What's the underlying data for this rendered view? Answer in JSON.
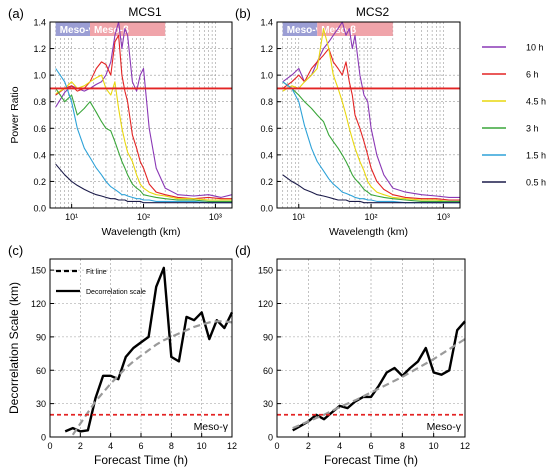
{
  "chart_data": [
    {
      "id": "a",
      "type": "line",
      "panel_label": "(a)",
      "title": "MCS1",
      "xlabel": "Wavelength (km)",
      "ylabel": "Power Ratio",
      "xscale": "log",
      "xlim": [
        5,
        1700
      ],
      "ylim": [
        0,
        1.4
      ],
      "xticks": [
        10,
        100,
        1000
      ],
      "xtick_labels": [
        "10¹",
        "10²",
        "10³"
      ],
      "yticks": [
        0,
        0.2,
        0.4,
        0.6,
        0.8,
        1.0,
        1.2,
        1.4
      ],
      "ytick_labels": [
        "0.0",
        "0.2",
        "0.4",
        "0.6",
        "0.8",
        "1.0",
        "1.2",
        "1.4"
      ],
      "grid": "dashed",
      "bands": [
        {
          "label": "Meso-γ",
          "from": 6,
          "to": 18,
          "color": "#9b9ed4"
        },
        {
          "label": "Meso-β",
          "from": 18,
          "to": 200,
          "color": "#f0a4aa"
        }
      ],
      "hline": {
        "y": 0.9,
        "color": "#e32424"
      },
      "series": [
        {
          "name": "10 h",
          "color": "#8a38b5",
          "x": [
            6,
            8,
            10,
            12,
            15,
            18,
            22,
            26,
            30,
            35,
            40,
            45,
            50,
            55,
            60,
            70,
            80,
            90,
            100,
            120,
            150,
            200,
            300,
            500,
            800,
            1200,
            1700
          ],
          "y": [
            0.76,
            0.87,
            0.92,
            0.9,
            0.88,
            0.9,
            0.93,
            0.95,
            1.0,
            1.1,
            1.3,
            1.4,
            1.2,
            1.35,
            1.3,
            0.95,
            0.88,
            1.0,
            1.05,
            0.6,
            0.3,
            0.15,
            0.1,
            0.09,
            0.1,
            0.08,
            0.1
          ]
        },
        {
          "name": "6 h",
          "color": "#e32424",
          "x": [
            6,
            8,
            10,
            12,
            15,
            18,
            22,
            26,
            30,
            35,
            40,
            45,
            50,
            55,
            60,
            70,
            80,
            90,
            100,
            120,
            150,
            200,
            300,
            500,
            800,
            1200,
            1700
          ],
          "y": [
            0.85,
            0.9,
            0.92,
            0.88,
            0.9,
            0.95,
            1.05,
            1.1,
            1.08,
            1.0,
            1.25,
            1.3,
            1.0,
            0.88,
            0.8,
            0.55,
            0.45,
            0.35,
            0.3,
            0.18,
            0.12,
            0.1,
            0.08,
            0.07,
            0.08,
            0.07,
            0.07
          ]
        },
        {
          "name": "4.5 h",
          "color": "#e8d70f",
          "x": [
            6,
            8,
            10,
            12,
            15,
            18,
            22,
            26,
            30,
            35,
            40,
            45,
            50,
            55,
            60,
            70,
            80,
            90,
            100,
            120,
            150,
            200,
            300,
            500,
            800,
            1200,
            1700
          ],
          "y": [
            0.86,
            0.9,
            0.95,
            0.9,
            0.92,
            0.95,
            0.98,
            1.0,
            0.9,
            0.85,
            0.95,
            0.75,
            0.6,
            0.5,
            0.42,
            0.35,
            0.25,
            0.18,
            0.15,
            0.12,
            0.1,
            0.09,
            0.07,
            0.07,
            0.06,
            0.06,
            0.06
          ]
        },
        {
          "name": "3 h",
          "color": "#3aa63a",
          "x": [
            6,
            8,
            10,
            12,
            15,
            18,
            22,
            26,
            30,
            35,
            40,
            45,
            50,
            55,
            60,
            70,
            80,
            90,
            100,
            120,
            150,
            200,
            300,
            500,
            800,
            1200,
            1700
          ],
          "y": [
            0.9,
            0.8,
            0.85,
            0.7,
            0.75,
            0.8,
            0.72,
            0.65,
            0.6,
            0.58,
            0.5,
            0.42,
            0.35,
            0.3,
            0.25,
            0.18,
            0.15,
            0.13,
            0.1,
            0.09,
            0.08,
            0.07,
            0.06,
            0.06,
            0.05,
            0.05,
            0.05
          ]
        },
        {
          "name": "1.5 h",
          "color": "#2ea2d8",
          "x": [
            6,
            8,
            10,
            12,
            15,
            18,
            22,
            26,
            30,
            35,
            40,
            45,
            50,
            55,
            60,
            70,
            80,
            90,
            100,
            120,
            150,
            200,
            300,
            500,
            800,
            1200,
            1700
          ],
          "y": [
            1.05,
            0.95,
            0.8,
            0.6,
            0.45,
            0.38,
            0.3,
            0.25,
            0.2,
            0.16,
            0.14,
            0.12,
            0.1,
            0.1,
            0.09,
            0.08,
            0.07,
            0.07,
            0.06,
            0.06,
            0.05,
            0.05,
            0.05,
            0.05,
            0.04,
            0.04,
            0.04
          ]
        },
        {
          "name": "0.5 h",
          "color": "#1c1c4a",
          "x": [
            6,
            8,
            10,
            12,
            15,
            18,
            22,
            26,
            30,
            35,
            40,
            45,
            50,
            55,
            60,
            70,
            80,
            90,
            100,
            120,
            150,
            200,
            300,
            500,
            800,
            1200,
            1700
          ],
          "y": [
            0.33,
            0.25,
            0.2,
            0.17,
            0.14,
            0.12,
            0.1,
            0.09,
            0.08,
            0.07,
            0.07,
            0.06,
            0.06,
            0.06,
            0.05,
            0.05,
            0.05,
            0.05,
            0.04,
            0.04,
            0.04,
            0.04,
            0.04,
            0.04,
            0.04,
            0.04,
            0.04
          ]
        }
      ]
    },
    {
      "id": "b",
      "type": "line",
      "panel_label": "(b)",
      "title": "MCS2",
      "xlabel": "Wavelength (km)",
      "ylabel": "",
      "xscale": "log",
      "xlim": [
        5,
        1700
      ],
      "ylim": [
        0,
        1.4
      ],
      "xticks": [
        10,
        100,
        1000
      ],
      "xtick_labels": [
        "10¹",
        "10²",
        "10³"
      ],
      "yticks": [
        0,
        0.2,
        0.4,
        0.6,
        0.8,
        1.0,
        1.2,
        1.4
      ],
      "ytick_labels": [
        "0.0",
        "0.2",
        "0.4",
        "0.6",
        "0.8",
        "1.0",
        "1.2",
        "1.4"
      ],
      "grid": "dashed",
      "bands": [
        {
          "label": "Meso-γ",
          "from": 6,
          "to": 18,
          "color": "#9b9ed4"
        },
        {
          "label": "Meso-β",
          "from": 18,
          "to": 200,
          "color": "#f0a4aa"
        }
      ],
      "hline": {
        "y": 0.9,
        "color": "#e32424"
      },
      "series": [
        {
          "name": "10 h",
          "color": "#8a38b5",
          "x": [
            6,
            8,
            10,
            12,
            15,
            18,
            22,
            26,
            30,
            35,
            40,
            45,
            50,
            55,
            60,
            70,
            80,
            90,
            100,
            120,
            150,
            200,
            300,
            500,
            800,
            1200,
            1700
          ],
          "y": [
            0.95,
            1.0,
            1.05,
            0.95,
            1.0,
            1.1,
            1.2,
            1.25,
            1.3,
            1.35,
            1.4,
            1.3,
            1.35,
            1.2,
            1.3,
            1.0,
            0.85,
            0.8,
            0.6,
            0.4,
            0.25,
            0.15,
            0.12,
            0.1,
            0.09,
            0.08,
            0.08
          ]
        },
        {
          "name": "6 h",
          "color": "#e32424",
          "x": [
            6,
            8,
            10,
            12,
            15,
            18,
            22,
            26,
            30,
            35,
            40,
            45,
            50,
            55,
            60,
            70,
            80,
            90,
            100,
            120,
            150,
            200,
            300,
            500,
            800,
            1200,
            1700
          ],
          "y": [
            0.9,
            0.95,
            1.0,
            0.95,
            1.05,
            1.1,
            1.15,
            1.2,
            1.1,
            1.05,
            1.0,
            1.1,
            0.95,
            0.85,
            0.7,
            0.6,
            0.5,
            0.4,
            0.3,
            0.2,
            0.14,
            0.1,
            0.08,
            0.07,
            0.07,
            0.06,
            0.06
          ]
        },
        {
          "name": "4.5 h",
          "color": "#e8d70f",
          "x": [
            6,
            8,
            10,
            12,
            15,
            18,
            22,
            26,
            30,
            35,
            40,
            45,
            50,
            55,
            60,
            70,
            80,
            90,
            100,
            120,
            150,
            200,
            300,
            500,
            800,
            1200,
            1700
          ],
          "y": [
            0.88,
            0.92,
            0.9,
            0.95,
            1.0,
            1.05,
            1.35,
            1.2,
            1.0,
            0.9,
            0.8,
            0.7,
            0.6,
            0.52,
            0.45,
            0.35,
            0.28,
            0.2,
            0.16,
            0.12,
            0.1,
            0.08,
            0.07,
            0.06,
            0.06,
            0.05,
            0.05
          ]
        },
        {
          "name": "3 h",
          "color": "#3aa63a",
          "x": [
            6,
            8,
            10,
            12,
            15,
            18,
            22,
            26,
            30,
            35,
            40,
            45,
            50,
            55,
            60,
            70,
            80,
            90,
            100,
            120,
            150,
            200,
            300,
            500,
            800,
            1200,
            1700
          ],
          "y": [
            0.95,
            0.9,
            0.85,
            0.8,
            0.75,
            0.7,
            0.65,
            0.55,
            0.5,
            0.45,
            0.4,
            0.35,
            0.3,
            0.25,
            0.22,
            0.18,
            0.14,
            0.12,
            0.1,
            0.09,
            0.08,
            0.07,
            0.06,
            0.05,
            0.05,
            0.05,
            0.05
          ]
        },
        {
          "name": "1.5 h",
          "color": "#2ea2d8",
          "x": [
            6,
            8,
            10,
            12,
            15,
            18,
            22,
            26,
            30,
            35,
            40,
            45,
            50,
            55,
            60,
            70,
            80,
            90,
            100,
            120,
            150,
            200,
            300,
            500,
            800,
            1200,
            1700
          ],
          "y": [
            0.95,
            0.9,
            0.8,
            0.62,
            0.45,
            0.35,
            0.28,
            0.22,
            0.18,
            0.15,
            0.12,
            0.11,
            0.1,
            0.09,
            0.08,
            0.07,
            0.07,
            0.06,
            0.06,
            0.05,
            0.05,
            0.05,
            0.04,
            0.04,
            0.04,
            0.04,
            0.04
          ]
        },
        {
          "name": "0.5 h",
          "color": "#1c1c4a",
          "x": [
            6,
            8,
            10,
            12,
            15,
            18,
            22,
            26,
            30,
            35,
            40,
            45,
            50,
            55,
            60,
            70,
            80,
            90,
            100,
            120,
            150,
            200,
            300,
            500,
            800,
            1200,
            1700
          ],
          "y": [
            0.25,
            0.2,
            0.17,
            0.14,
            0.12,
            0.1,
            0.09,
            0.08,
            0.07,
            0.06,
            0.06,
            0.06,
            0.05,
            0.05,
            0.05,
            0.05,
            0.04,
            0.04,
            0.04,
            0.04,
            0.04,
            0.04,
            0.04,
            0.04,
            0.04,
            0.04,
            0.04
          ]
        }
      ]
    },
    {
      "id": "c",
      "type": "line",
      "panel_label": "(c)",
      "xlabel": "Forecast Time (h)",
      "ylabel": "Decorrelation Scale (km)",
      "xlim": [
        0,
        12
      ],
      "ylim": [
        0,
        160
      ],
      "xticks": [
        0,
        2,
        4,
        6,
        8,
        10,
        12
      ],
      "yticks": [
        0,
        30,
        60,
        90,
        120,
        150
      ],
      "grid": "dashed",
      "legend": [
        {
          "label": "Fit line",
          "style": "dashed",
          "color": "#000000"
        },
        {
          "label": "Decorrelation scale",
          "style": "solid",
          "color": "#000000"
        }
      ],
      "annotation": "Meso-γ",
      "hline": {
        "y": 20,
        "color": "#e32424",
        "style": "dashed"
      },
      "series": [
        {
          "name": "Decorrelation scale",
          "color": "#000000",
          "x": [
            1,
            1.5,
            2,
            2.5,
            3,
            3.5,
            4,
            4.5,
            5,
            5.5,
            6,
            6.5,
            7,
            7.5,
            8,
            8.5,
            9,
            9.5,
            10,
            10.5,
            11,
            11.5,
            12
          ],
          "y": [
            5,
            8,
            5,
            6,
            35,
            55,
            55,
            52,
            72,
            80,
            85,
            90,
            135,
            152,
            72,
            68,
            108,
            105,
            112,
            88,
            105,
            98,
            112
          ]
        },
        {
          "name": "Fit line",
          "color": "#9a9a9a",
          "x": [
            1.5,
            2,
            2.5,
            3,
            3.5,
            4,
            4.5,
            5,
            5.5,
            6,
            6.5,
            7,
            7.5,
            8,
            8.5,
            9,
            9.5,
            10,
            10.5,
            11,
            11.5,
            12
          ],
          "y": [
            2,
            12,
            22,
            32,
            40,
            48,
            55,
            62,
            68,
            73,
            78,
            83,
            87,
            90,
            93,
            96,
            99,
            101,
            103,
            104,
            104,
            103
          ]
        }
      ]
    },
    {
      "id": "d",
      "type": "line",
      "panel_label": "(d)",
      "xlabel": "Forecast Time (h)",
      "ylabel": "",
      "xlim": [
        0,
        12
      ],
      "ylim": [
        0,
        160
      ],
      "xticks": [
        0,
        2,
        4,
        6,
        8,
        10,
        12
      ],
      "yticks": [
        0,
        30,
        60,
        90,
        120,
        150
      ],
      "grid": "dashed",
      "annotation": "Meso-γ",
      "hline": {
        "y": 20,
        "color": "#e32424",
        "style": "dashed"
      },
      "series": [
        {
          "name": "Decorrelation scale",
          "color": "#000000",
          "x": [
            1,
            1.5,
            2,
            2.5,
            3,
            3.5,
            4,
            4.5,
            5,
            5.5,
            6,
            6.5,
            7,
            7.5,
            8,
            8.5,
            9,
            9.5,
            10,
            10.5,
            11,
            11.5,
            12
          ],
          "y": [
            6,
            10,
            14,
            20,
            16,
            22,
            28,
            26,
            32,
            36,
            36,
            46,
            58,
            62,
            55,
            62,
            68,
            80,
            58,
            56,
            60,
            96,
            104
          ]
        },
        {
          "name": "Fit line",
          "color": "#9a9a9a",
          "x": [
            1,
            2,
            3,
            4,
            5,
            6,
            7,
            8,
            9,
            10,
            11,
            12
          ],
          "y": [
            8,
            14,
            20,
            27,
            33,
            40,
            47,
            54,
            62,
            70,
            79,
            88
          ]
        }
      ]
    }
  ]
}
